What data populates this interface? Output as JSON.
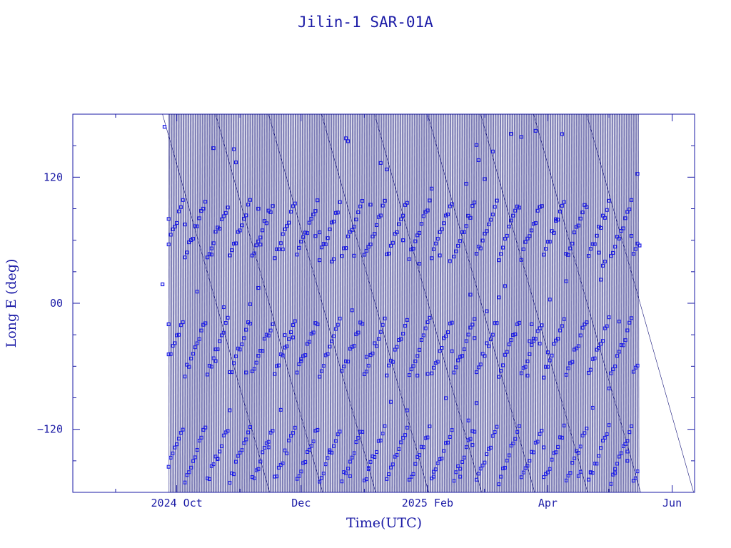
{
  "chart_data": {
    "type": "scatter",
    "title": "Jilin-1 SAR-01A",
    "xlabel": "Time(UTC)",
    "ylabel": "Long E (deg)",
    "x_tick_labels": [
      {
        "label": "2024 Oct",
        "date": "2024-10-01"
      },
      {
        "label": "Dec",
        "date": "2024-12-01"
      },
      {
        "label": "2025 Feb",
        "date": "2025-02-01"
      },
      {
        "label": "Apr",
        "date": "2025-04-01"
      },
      {
        "label": "Jun",
        "date": "2025-06-01"
      }
    ],
    "y_tick_labels": [
      {
        "label": "120",
        "value": 120
      },
      {
        "label": "00",
        "value": 0
      },
      {
        "label": "−120",
        "value": -120
      }
    ],
    "xlim": [
      "2024-08-11",
      "2025-06-12"
    ],
    "ylim": [
      -180,
      180
    ],
    "data_range": [
      "2024-09-24",
      "2025-05-16"
    ],
    "series": [
      {
        "marker": "square",
        "color": "#1a1ae6",
        "line_color": "#14147a",
        "values_sample": [
          {
            "x": "2024-09-24",
            "y": 18
          },
          {
            "x": "2024-09-25",
            "y": 168
          },
          {
            "x": "2024-09-27",
            "y": -20
          },
          {
            "x": "2024-10-05",
            "y": 75
          },
          {
            "x": "2024-10-20",
            "y": -55
          },
          {
            "x": "2024-11-10",
            "y": 90
          },
          {
            "x": "2024-12-15",
            "y": -140
          },
          {
            "x": "2025-01-20",
            "y": 60
          },
          {
            "x": "2025-02-25",
            "y": -95
          },
          {
            "x": "2025-04-05",
            "y": 80
          },
          {
            "x": "2025-05-10",
            "y": -150
          },
          {
            "x": "2025-05-16",
            "y": 55
          }
        ]
      }
    ],
    "grid": false,
    "legend": "none"
  }
}
